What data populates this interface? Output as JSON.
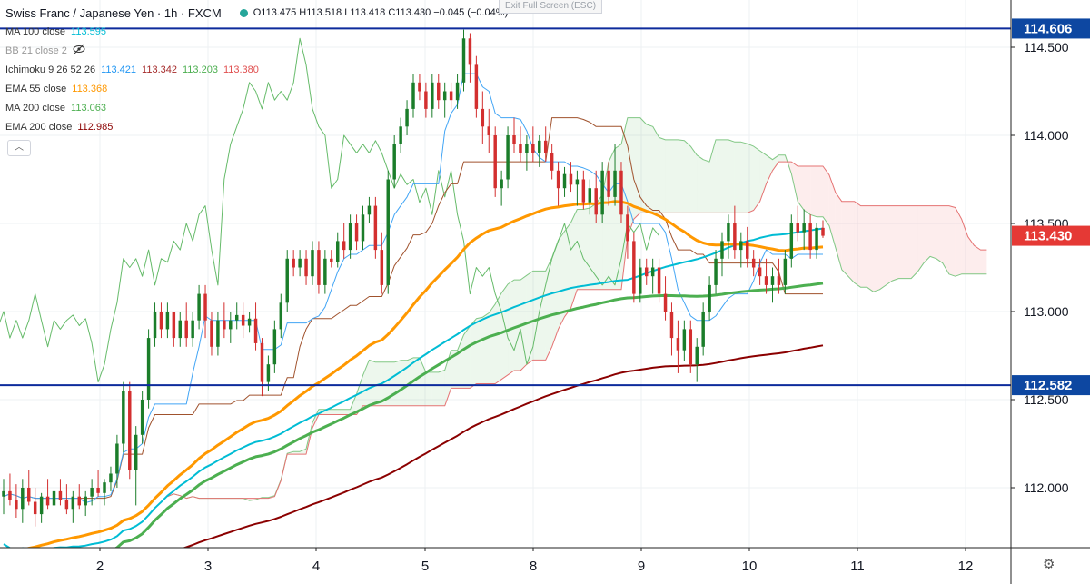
{
  "header": {
    "symbol": "Swiss Franc / Japanese Yen · 1h · FXCM",
    "ohlc": "O113.475  H113.518  L113.418  C113.430  −0.045  (−0.04%)",
    "exit_full_screen": "Exit Full Screen (ESC)"
  },
  "indicators": [
    {
      "label": "MA 100 close",
      "value": "113.595",
      "color": "#00bcd4"
    },
    {
      "label": "BB 21 close 2",
      "value": "",
      "color": "#999999",
      "hidden": true
    },
    {
      "label": "Ichimoku 9 26 52 26",
      "values": [
        "113.421",
        "113.342",
        "113.203",
        "113.380"
      ],
      "colors": [
        "#2196f3",
        "#a52a2a",
        "#4caf50",
        "#e05050"
      ]
    },
    {
      "label": "EMA 55 close",
      "value": "113.368",
      "color": "#ff9800"
    },
    {
      "label": "MA 200 close",
      "value": "113.063",
      "color": "#4caf50"
    },
    {
      "label": "EMA 200 close",
      "value": "112.985",
      "color": "#8b0000"
    }
  ],
  "colors": {
    "up": "#26a69a",
    "down": "#ef5350",
    "candle_up": "#1b7d2a",
    "candle_down": "#d32f2f",
    "hline": "#0d2b9c",
    "current_tag": "#e53935",
    "level_tag": "#0d47a1",
    "cloud_bull": "#4caf50",
    "cloud_bear": "#ef5350"
  },
  "chart_data": {
    "type": "line",
    "x_ticks": [
      "2",
      "3",
      "4",
      "5",
      "8",
      "9",
      "10",
      "11",
      "12"
    ],
    "y_ticks": [
      "112.000",
      "112.500",
      "113.000",
      "113.500",
      "114.000",
      "114.500"
    ],
    "ylim": [
      111.65,
      114.68
    ],
    "price_tags": [
      {
        "value": 114.606,
        "label": "114.606",
        "kind": "level"
      },
      {
        "value": 113.43,
        "label": "113.430",
        "kind": "current"
      },
      {
        "value": 112.582,
        "label": "112.582",
        "kind": "level"
      }
    ],
    "horizontal_lines": [
      114.606,
      112.582
    ],
    "candles": [
      [
        111.95,
        112.05,
        111.85,
        111.98
      ],
      [
        111.98,
        112.08,
        111.9,
        111.93
      ],
      [
        111.93,
        112.02,
        111.83,
        111.88
      ],
      [
        111.88,
        112.05,
        111.8,
        112.0
      ],
      [
        112.0,
        112.1,
        111.9,
        111.92
      ],
      [
        111.92,
        112.0,
        111.78,
        111.85
      ],
      [
        111.85,
        111.97,
        111.8,
        111.95
      ],
      [
        111.95,
        112.05,
        111.88,
        111.9
      ],
      [
        111.9,
        112.0,
        111.82,
        111.98
      ],
      [
        111.98,
        112.05,
        111.9,
        111.93
      ],
      [
        111.93,
        112.02,
        111.85,
        111.88
      ],
      [
        111.88,
        111.98,
        111.8,
        111.95
      ],
      [
        111.95,
        112.02,
        111.88,
        111.9
      ],
      [
        111.9,
        111.98,
        111.84,
        111.95
      ],
      [
        111.95,
        112.05,
        111.9,
        112.0
      ],
      [
        112.0,
        112.1,
        111.95,
        111.97
      ],
      [
        111.97,
        112.05,
        111.9,
        112.03
      ],
      [
        112.03,
        112.12,
        111.98,
        112.08
      ],
      [
        112.08,
        112.3,
        112.0,
        112.25
      ],
      [
        112.25,
        112.6,
        112.2,
        112.55
      ],
      [
        112.55,
        112.6,
        112.05,
        112.1
      ],
      [
        112.1,
        112.35,
        111.9,
        112.3
      ],
      [
        112.3,
        112.55,
        112.25,
        112.5
      ],
      [
        112.5,
        112.9,
        112.45,
        112.85
      ],
      [
        112.85,
        113.05,
        112.8,
        113.0
      ],
      [
        113.0,
        113.05,
        112.85,
        112.9
      ],
      [
        112.9,
        113.05,
        112.85,
        113.0
      ],
      [
        113.0,
        113.0,
        112.8,
        112.85
      ],
      [
        112.85,
        113.0,
        112.8,
        112.95
      ],
      [
        112.95,
        113.05,
        112.8,
        112.85
      ],
      [
        112.85,
        113.0,
        112.8,
        112.95
      ],
      [
        112.95,
        113.15,
        112.9,
        113.1
      ],
      [
        113.1,
        113.15,
        112.85,
        112.95
      ],
      [
        112.95,
        113.0,
        112.75,
        112.8
      ],
      [
        112.8,
        113.0,
        112.75,
        112.95
      ],
      [
        112.95,
        113.05,
        112.85,
        112.9
      ],
      [
        112.9,
        113.0,
        112.82,
        112.95
      ],
      [
        112.95,
        113.05,
        112.9,
        112.98
      ],
      [
        112.98,
        113.05,
        112.85,
        112.92
      ],
      [
        112.92,
        113.0,
        112.88,
        112.96
      ],
      [
        112.96,
        113.05,
        112.78,
        112.82
      ],
      [
        112.82,
        112.85,
        112.52,
        112.6
      ],
      [
        112.6,
        112.75,
        112.55,
        112.7
      ],
      [
        112.7,
        112.95,
        112.65,
        112.9
      ],
      [
        112.9,
        113.1,
        112.85,
        113.05
      ],
      [
        113.05,
        113.35,
        113.0,
        113.3
      ],
      [
        113.3,
        113.35,
        113.2,
        113.25
      ],
      [
        113.25,
        113.35,
        113.2,
        113.3
      ],
      [
        113.3,
        113.35,
        113.15,
        113.2
      ],
      [
        113.2,
        113.4,
        113.15,
        113.35
      ],
      [
        113.35,
        113.4,
        113.1,
        113.15
      ],
      [
        113.15,
        113.35,
        113.1,
        113.3
      ],
      [
        113.3,
        113.35,
        113.25,
        113.28
      ],
      [
        113.28,
        113.45,
        113.25,
        113.4
      ],
      [
        113.4,
        113.5,
        113.3,
        113.35
      ],
      [
        113.35,
        113.55,
        113.3,
        113.5
      ],
      [
        113.5,
        113.55,
        113.35,
        113.4
      ],
      [
        113.4,
        113.6,
        113.35,
        113.55
      ],
      [
        113.55,
        113.65,
        113.5,
        113.6
      ],
      [
        113.6,
        113.65,
        113.3,
        113.35
      ],
      [
        113.35,
        113.45,
        113.1,
        113.15
      ],
      [
        113.15,
        113.8,
        113.1,
        113.75
      ],
      [
        113.75,
        114.0,
        113.7,
        113.95
      ],
      [
        113.95,
        114.1,
        113.9,
        114.05
      ],
      [
        114.05,
        114.2,
        114.0,
        114.15
      ],
      [
        114.15,
        114.35,
        114.1,
        114.3
      ],
      [
        114.3,
        114.35,
        114.2,
        114.25
      ],
      [
        114.25,
        114.3,
        114.1,
        114.15
      ],
      [
        114.15,
        114.35,
        114.1,
        114.3
      ],
      [
        114.3,
        114.35,
        114.15,
        114.2
      ],
      [
        114.2,
        114.3,
        114.1,
        114.25
      ],
      [
        114.25,
        114.3,
        114.15,
        114.2
      ],
      [
        114.2,
        114.35,
        114.15,
        114.3
      ],
      [
        114.3,
        114.6,
        114.25,
        114.55
      ],
      [
        114.55,
        114.58,
        114.3,
        114.4
      ],
      [
        114.4,
        114.45,
        114.1,
        114.15
      ],
      [
        114.15,
        114.25,
        113.95,
        114.05
      ],
      [
        114.05,
        114.15,
        113.9,
        114.0
      ],
      [
        114.0,
        114.05,
        113.65,
        113.7
      ],
      [
        113.7,
        113.8,
        113.6,
        113.75
      ],
      [
        113.75,
        114.05,
        113.7,
        114.0
      ],
      [
        114.0,
        114.1,
        113.9,
        113.95
      ],
      [
        113.95,
        114.05,
        113.85,
        113.9
      ],
      [
        113.9,
        114.0,
        113.8,
        113.95
      ],
      [
        113.95,
        114.05,
        113.85,
        113.9
      ],
      [
        113.9,
        114.0,
        113.82,
        113.97
      ],
      [
        113.97,
        114.05,
        113.85,
        113.9
      ],
      [
        113.9,
        113.95,
        113.75,
        113.8
      ],
      [
        113.8,
        113.85,
        113.6,
        113.7
      ],
      [
        113.7,
        113.82,
        113.65,
        113.78
      ],
      [
        113.78,
        113.85,
        113.68,
        113.72
      ],
      [
        113.72,
        113.8,
        113.6,
        113.75
      ],
      [
        113.75,
        113.8,
        113.58,
        113.62
      ],
      [
        113.62,
        113.75,
        113.55,
        113.7
      ],
      [
        113.7,
        113.8,
        113.5,
        113.55
      ],
      [
        113.55,
        113.85,
        113.5,
        113.8
      ],
      [
        113.8,
        113.85,
        113.6,
        113.65
      ],
      [
        113.65,
        113.95,
        113.6,
        113.8
      ],
      [
        113.8,
        113.85,
        113.5,
        113.55
      ],
      [
        113.55,
        113.6,
        113.3,
        113.4
      ],
      [
        113.4,
        113.45,
        113.05,
        113.1
      ],
      [
        113.1,
        113.3,
        113.05,
        113.25
      ],
      [
        113.25,
        113.3,
        113.15,
        113.2
      ],
      [
        113.2,
        113.3,
        113.1,
        113.25
      ],
      [
        113.25,
        113.3,
        113.05,
        113.1
      ],
      [
        113.1,
        113.2,
        112.95,
        113.0
      ],
      [
        113.0,
        113.05,
        112.75,
        112.85
      ],
      [
        112.85,
        112.95,
        112.65,
        112.78
      ],
      [
        112.78,
        112.95,
        112.72,
        112.9
      ],
      [
        112.9,
        112.95,
        112.65,
        112.7
      ],
      [
        112.7,
        112.85,
        112.6,
        112.8
      ],
      [
        112.8,
        113.05,
        112.75,
        113.0
      ],
      [
        113.0,
        113.2,
        112.95,
        113.15
      ],
      [
        113.15,
        113.35,
        113.1,
        113.3
      ],
      [
        113.3,
        113.45,
        113.2,
        113.4
      ],
      [
        113.4,
        113.55,
        113.3,
        113.5
      ],
      [
        113.5,
        113.6,
        113.3,
        113.35
      ],
      [
        113.35,
        113.45,
        113.25,
        113.4
      ],
      [
        113.4,
        113.48,
        113.25,
        113.3
      ],
      [
        113.3,
        113.35,
        113.2,
        113.25
      ],
      [
        113.25,
        113.3,
        113.15,
        113.2
      ],
      [
        113.2,
        113.3,
        113.1,
        113.15
      ],
      [
        113.15,
        113.25,
        113.05,
        113.2
      ],
      [
        113.2,
        113.3,
        113.1,
        113.15
      ],
      [
        113.15,
        113.35,
        113.1,
        113.3
      ],
      [
        113.3,
        113.55,
        113.25,
        113.5
      ],
      [
        113.5,
        113.6,
        113.4,
        113.45
      ],
      [
        113.45,
        113.58,
        113.35,
        113.5
      ],
      [
        113.5,
        113.55,
        113.3,
        113.35
      ],
      [
        113.35,
        113.5,
        113.3,
        113.475
      ],
      [
        113.475,
        113.518,
        113.418,
        113.43
      ]
    ]
  }
}
